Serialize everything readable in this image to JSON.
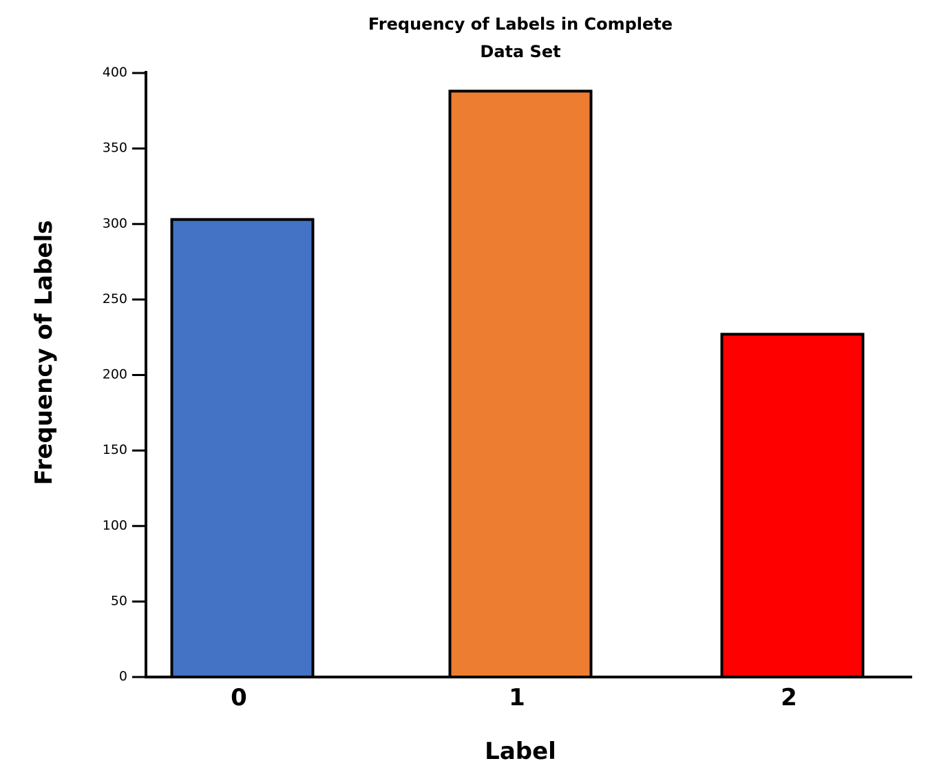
{
  "chart_data": {
    "type": "bar",
    "title": "Frequency of Labels in Complete Data Set",
    "title_lines": [
      "Frequency of Labels in Complete",
      "Data Set"
    ],
    "xlabel": "Label",
    "ylabel": "Frequency of Labels",
    "categories": [
      "0",
      "1",
      "2"
    ],
    "values": [
      303,
      388,
      227
    ],
    "colors": [
      "#4472c4",
      "#ed7d31",
      "#ff0000"
    ],
    "edge_color": "#000000",
    "ylim": [
      0,
      400
    ],
    "yticks": [
      0,
      50,
      100,
      150,
      200,
      250,
      300,
      350,
      400
    ],
    "ytick_labels": [
      "0",
      "50",
      "100",
      "150",
      "200",
      "250",
      "300",
      "350",
      "400"
    ],
    "grid": false,
    "legend": "none"
  }
}
